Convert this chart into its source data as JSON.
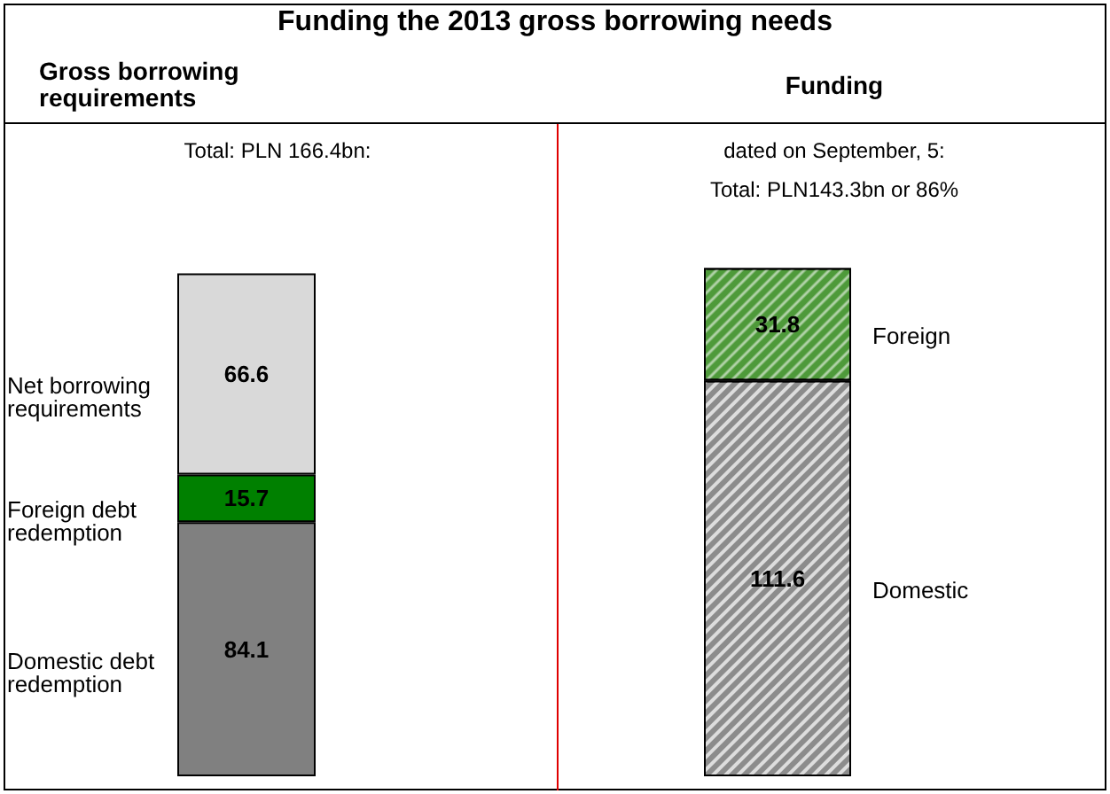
{
  "chart_data": [
    {
      "type": "bar",
      "title": "Funding the 2013 gross borrowing needs",
      "subtitle": "Gross borrowing requirements",
      "annotations": [
        "Total: PLN 166.4bn:"
      ],
      "categories": [
        null
      ],
      "stacked": true,
      "data_labels": true,
      "series": [
        {
          "name": "Domestic debt redemption",
          "color": "#808080",
          "values": [
            84.1
          ]
        },
        {
          "name": "Foreign debt redemption",
          "color": "#008000",
          "values": [
            15.7
          ]
        },
        {
          "name": "Net borrowing requirements",
          "color": "#d9d9d9",
          "values": [
            66.6
          ]
        }
      ]
    },
    {
      "type": "bar",
      "title": "Funding",
      "annotations": [
        "dated on September, 5:",
        "Total: PLN143.3bn or 86%"
      ],
      "categories": [
        null
      ],
      "stacked": true,
      "data_labels": true,
      "series": [
        {
          "name": "Domestic",
          "color": "#8c8c8c",
          "values": [
            111.6
          ]
        },
        {
          "name": "Foreign",
          "color": "#4e9a3a",
          "values": [
            31.8
          ]
        }
      ]
    }
  ]
}
